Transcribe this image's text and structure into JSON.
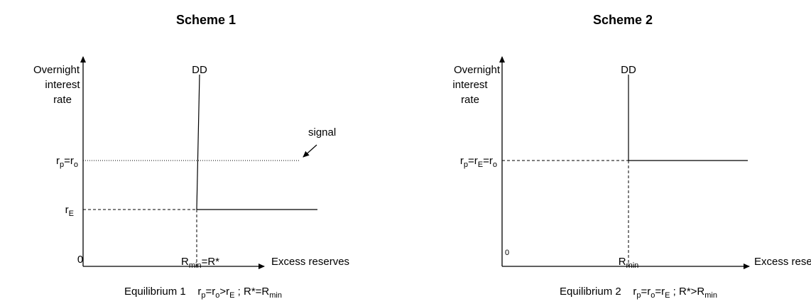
{
  "scheme1": {
    "title": "Scheme 1",
    "y_axis_label": [
      "Overnight",
      "interest",
      "rate"
    ],
    "origin": "0",
    "x_axis_label": "Excess reserves",
    "curve_label": "DD",
    "upper_level": [
      "r",
      "p",
      "=r",
      "o"
    ],
    "lower_level": [
      "r",
      "E"
    ],
    "signal_label": "signal",
    "x_mark": [
      "R",
      "min",
      "=R*"
    ],
    "caption": [
      "Equilibrium 1    r",
      "p",
      "=r",
      "o",
      ">r",
      "E",
      " ; R*=R",
      "min"
    ]
  },
  "scheme2": {
    "title": "Scheme 2",
    "y_axis_label": [
      "Overnight",
      "interest",
      "rate"
    ],
    "origin": "0",
    "x_axis_label": "Excess reserves",
    "curve_label": "DD",
    "level": [
      "r",
      "p",
      "=r",
      "E",
      "=r",
      "o"
    ],
    "x_mark": [
      "R",
      "min"
    ],
    "caption": [
      "Equilibrium 2    r",
      "p",
      "=r",
      "o",
      "=r",
      "E",
      " ; R*>R",
      "min"
    ]
  }
}
